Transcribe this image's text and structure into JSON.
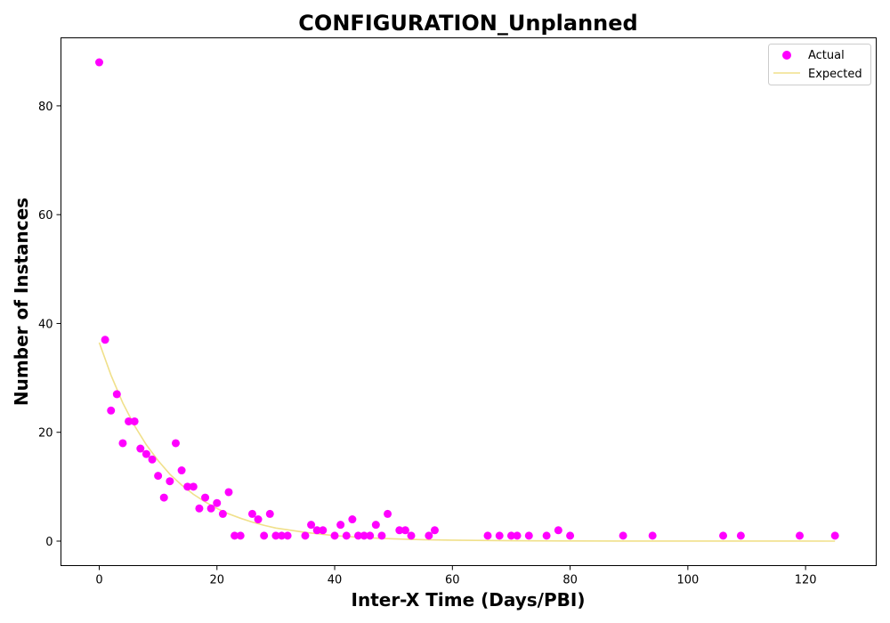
{
  "chart_data": {
    "type": "scatter",
    "title": "CONFIGURATION_Unplanned",
    "xlabel": "Inter-X Time (Days/PBI)",
    "ylabel": "Number of Instances",
    "xlim": [
      -6.5,
      132
    ],
    "ylim": [
      -4.5,
      92.5
    ],
    "xticks": [
      0,
      20,
      40,
      60,
      80,
      100,
      120
    ],
    "yticks": [
      0,
      20,
      40,
      60,
      80
    ],
    "grid": false,
    "legend_position": "top-right",
    "series": [
      {
        "name": "Actual",
        "kind": "scatter",
        "color": "#ff00ff",
        "points": [
          [
            0,
            88
          ],
          [
            1,
            37
          ],
          [
            2,
            24
          ],
          [
            3,
            27
          ],
          [
            4,
            18
          ],
          [
            5,
            22
          ],
          [
            6,
            22
          ],
          [
            7,
            17
          ],
          [
            8,
            16
          ],
          [
            9,
            15
          ],
          [
            10,
            12
          ],
          [
            11,
            8
          ],
          [
            12,
            11
          ],
          [
            13,
            18
          ],
          [
            14,
            13
          ],
          [
            15,
            10
          ],
          [
            16,
            10
          ],
          [
            17,
            6
          ],
          [
            18,
            8
          ],
          [
            19,
            6
          ],
          [
            20,
            7
          ],
          [
            21,
            5
          ],
          [
            22,
            9
          ],
          [
            23,
            1
          ],
          [
            24,
            1
          ],
          [
            26,
            5
          ],
          [
            27,
            4
          ],
          [
            28,
            1
          ],
          [
            29,
            5
          ],
          [
            30,
            1
          ],
          [
            31,
            1
          ],
          [
            32,
            1
          ],
          [
            35,
            1
          ],
          [
            36,
            3
          ],
          [
            37,
            2
          ],
          [
            38,
            2
          ],
          [
            40,
            1
          ],
          [
            41,
            3
          ],
          [
            42,
            1
          ],
          [
            43,
            4
          ],
          [
            44,
            1
          ],
          [
            45,
            1
          ],
          [
            46,
            1
          ],
          [
            47,
            3
          ],
          [
            48,
            1
          ],
          [
            49,
            5
          ],
          [
            51,
            2
          ],
          [
            52,
            2
          ],
          [
            53,
            1
          ],
          [
            56,
            1
          ],
          [
            57,
            2
          ],
          [
            66,
            1
          ],
          [
            68,
            1
          ],
          [
            70,
            1
          ],
          [
            71,
            1
          ],
          [
            73,
            1
          ],
          [
            76,
            1
          ],
          [
            78,
            2
          ],
          [
            80,
            1
          ],
          [
            89,
            1
          ],
          [
            94,
            1
          ],
          [
            106,
            1
          ],
          [
            109,
            1
          ],
          [
            119,
            1
          ],
          [
            125,
            1
          ]
        ]
      },
      {
        "name": "Expected",
        "kind": "line",
        "color": "#f0e08a",
        "points": [
          [
            0,
            36.5
          ],
          [
            2,
            30.5
          ],
          [
            4,
            25.4
          ],
          [
            6,
            21.2
          ],
          [
            8,
            17.7
          ],
          [
            10,
            14.8
          ],
          [
            12,
            12.3
          ],
          [
            14,
            10.3
          ],
          [
            16,
            8.6
          ],
          [
            18,
            7.2
          ],
          [
            20,
            6.0
          ],
          [
            22,
            5.0
          ],
          [
            24,
            4.2
          ],
          [
            26,
            3.5
          ],
          [
            28,
            2.9
          ],
          [
            30,
            2.4
          ],
          [
            35,
            1.6
          ],
          [
            40,
            1.0
          ],
          [
            45,
            0.64
          ],
          [
            50,
            0.41
          ],
          [
            55,
            0.26
          ],
          [
            60,
            0.17
          ],
          [
            70,
            0.07
          ],
          [
            80,
            0.03
          ],
          [
            90,
            0.01
          ],
          [
            100,
            0.005
          ],
          [
            110,
            0.002
          ],
          [
            125,
            0.0
          ]
        ]
      }
    ]
  }
}
